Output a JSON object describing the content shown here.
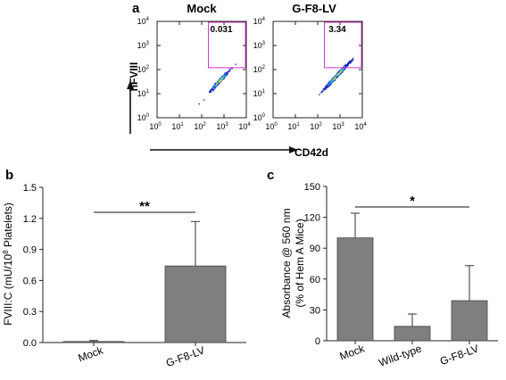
{
  "colors": {
    "bar_fill": "#7f7f7f",
    "gate": "#cc33cc",
    "axis": "#222222",
    "density": [
      "#1f2fbf",
      "#2aa0e0",
      "#2ed0b0",
      "#e8e020",
      "#e43a1c"
    ]
  },
  "chart_data": [
    {
      "panel": "a",
      "type": "scatter",
      "subtype": "flow-cytometry-density",
      "xlabel": "CD42d",
      "ylabel": "hFVIII",
      "log_scale": true,
      "xlim": [
        1,
        10000
      ],
      "ylim": [
        1,
        10000
      ],
      "tick_base": "10",
      "tick_exponents": [
        "0",
        "1",
        "2",
        "3",
        "4"
      ],
      "gate": {
        "x": [
          200,
          10000
        ],
        "y": [
          120,
          10000
        ]
      },
      "plots": [
        {
          "title": "Mock",
          "gate_value": "0.031",
          "population": {
            "center_x": 600,
            "center_y": 35
          }
        },
        {
          "title": "G-F8-LV",
          "gate_value": "3.34",
          "population": {
            "center_x": 700,
            "center_y": 60
          }
        }
      ]
    },
    {
      "panel": "b",
      "type": "bar",
      "categories": [
        "Mock",
        "G-F8-LV"
      ],
      "values": [
        0.01,
        0.74
      ],
      "errors": [
        0.01,
        0.43
      ],
      "ylabel_prefix": "FVIII:C (mU/10",
      "ylabel_sup": "8",
      "ylabel_suffix": " Platelets)",
      "ylim": [
        0,
        1.5
      ],
      "yticks": [
        "0.0",
        "0.3",
        "0.6",
        "0.9",
        "1.2",
        "1.5"
      ],
      "significance": "**",
      "significance_between": [
        "Mock",
        "G-F8-LV"
      ]
    },
    {
      "panel": "c",
      "type": "bar",
      "categories": [
        "Mock",
        "Wild-type",
        "G-F8-LV"
      ],
      "values": [
        100,
        14,
        39
      ],
      "errors": [
        24,
        12,
        34
      ],
      "ylabel_line1": "Absorbance @ 560 nm",
      "ylabel_line2": "(% of Hem A Mice)",
      "ylim": [
        0,
        150
      ],
      "yticks": [
        "0",
        "30",
        "60",
        "90",
        "120",
        "150"
      ],
      "significance": "*",
      "significance_between": [
        "Mock",
        "G-F8-LV"
      ]
    }
  ]
}
